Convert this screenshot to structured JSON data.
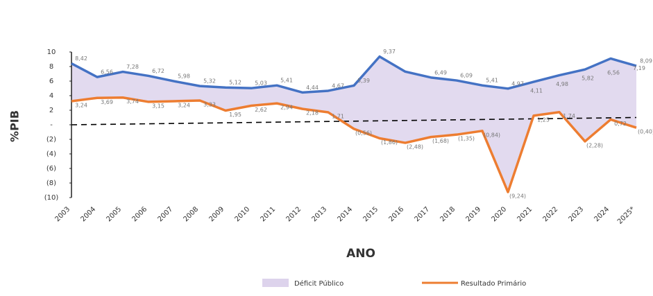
{
  "chart_data": {
    "type": "line",
    "y_label": "%PIB",
    "x_label": "ANO",
    "categories": [
      "2003",
      "2004",
      "2005",
      "2006",
      "2007",
      "2008",
      "2009",
      "2010",
      "2011",
      "2012",
      "2013",
      "2014",
      "2015",
      "2016",
      "2017",
      "2018",
      "2019",
      "2020",
      "2021",
      "2022",
      "2023",
      "2024",
      "2025*"
    ],
    "ylim": [
      -10,
      10
    ],
    "yticks": [
      10,
      8,
      6,
      4,
      2,
      {
        "value": 0,
        "label": "-"
      },
      {
        "value": -2,
        "label": "(2)"
      },
      {
        "value": -4,
        "label": "(4)"
      },
      {
        "value": -6,
        "label": "(6)"
      },
      {
        "value": -8,
        "label": "(8)"
      },
      {
        "value": -10,
        "label": "(10)"
      }
    ],
    "series": [
      {
        "name": "Déficit Público",
        "color": "#4472c4",
        "area_color": "#ddd3ec",
        "values": [
          8.42,
          6.56,
          7.28,
          6.72,
          5.98,
          5.32,
          5.12,
          5.03,
          5.41,
          4.44,
          4.67,
          5.39,
          9.37,
          7.3,
          6.49,
          6.09,
          5.41,
          4.97,
          5.9,
          6.8,
          7.6,
          9.1,
          8.09
        ],
        "value_labels": [
          "8,42",
          "6,56",
          "7,28",
          "6,72",
          "5,98",
          "5,32",
          "5,12",
          "5,03",
          "5,41",
          "4,44",
          "4,67",
          "5,39",
          "9,37",
          null,
          "6,49",
          "6,09",
          "5,41",
          "4,97",
          null,
          null,
          null,
          null,
          "8,09"
        ]
      },
      {
        "name": "Resultado Primário",
        "color": "#ed7d31",
        "values": [
          3.24,
          3.69,
          3.74,
          3.15,
          3.24,
          3.33,
          1.95,
          2.62,
          2.94,
          2.18,
          1.71,
          -0.56,
          -1.86,
          -2.48,
          -1.68,
          -1.35,
          -0.84,
          -9.24,
          1.25,
          1.74,
          -2.28,
          0.72,
          -0.4
        ],
        "value_labels": [
          "3,24",
          "3,69",
          "3,74",
          "3,15",
          "3,24",
          "3,33",
          "1,95",
          "2,62",
          "2,94",
          "2,18",
          "1,71",
          "(0,56)",
          "(1,86)",
          "(2,48)",
          "(1,68)",
          "(1,35)",
          "(0,84)",
          "(9,24)",
          "1,25",
          "1,74",
          "(2,28)",
          "0,72",
          "(0,40)"
        ]
      }
    ],
    "annotations": [
      {
        "category": "2021",
        "value": 4.11,
        "label": "4,11"
      },
      {
        "category": "2022",
        "value": 4.98,
        "label": "4,98"
      },
      {
        "category": "2023",
        "value": 5.82,
        "label": "5,82"
      },
      {
        "category": "2024",
        "value": 6.56,
        "label": "6,56"
      },
      {
        "category": "2025*",
        "value": 7.19,
        "label": "7,19"
      }
    ],
    "reference_line": {
      "values": [
        0,
        1.0
      ],
      "color": "#000"
    },
    "legend": "bottom"
  }
}
